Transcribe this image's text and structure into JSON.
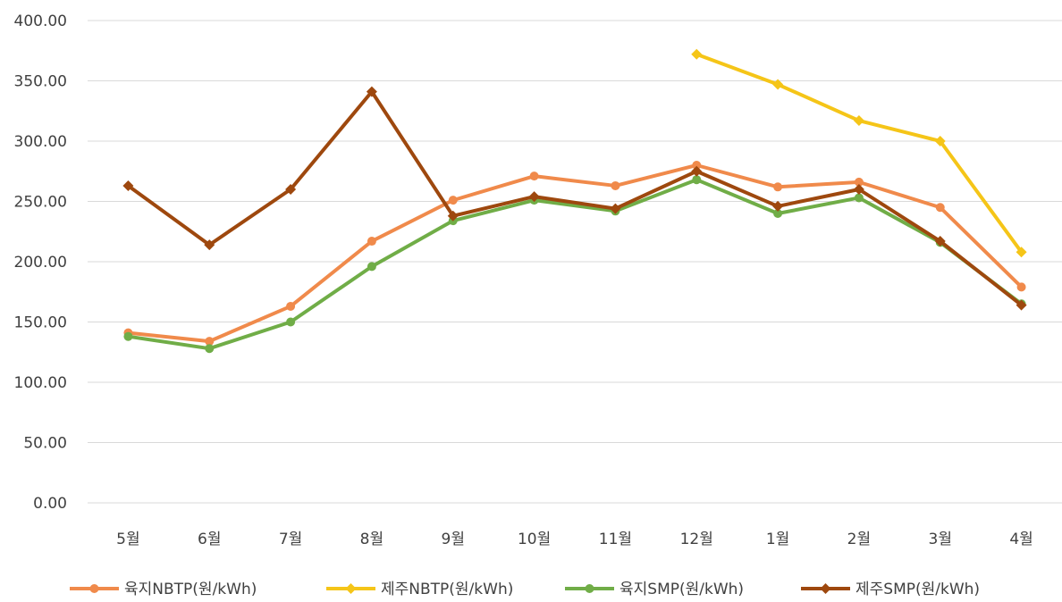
{
  "chart_data": {
    "type": "line",
    "title": "",
    "xlabel": "",
    "ylabel": "",
    "categories": [
      "5월",
      "6월",
      "7월",
      "8월",
      "9월",
      "10월",
      "11월",
      "12월",
      "1월",
      "2월",
      "3월",
      "4월"
    ],
    "ylim": [
      0,
      400
    ],
    "ytick_labels": [
      "0.00",
      "50.00",
      "100.00",
      "150.00",
      "200.00",
      "250.00",
      "300.00",
      "350.00",
      "400.00"
    ],
    "grid": true,
    "legend_position": "bottom",
    "series": [
      {
        "name": "육지NBTP(원/kWh)",
        "color": "#f08a4b",
        "marker": "circle",
        "values": [
          141,
          134,
          163,
          217,
          251,
          271,
          263,
          280,
          262,
          266,
          245,
          179
        ]
      },
      {
        "name": "제주NBTP(원/kWh)",
        "color": "#f5c518",
        "marker": "diamond",
        "values": [
          null,
          null,
          null,
          null,
          null,
          null,
          null,
          372,
          347,
          317,
          300,
          208
        ]
      },
      {
        "name": "육지SMP(원/kWh)",
        "color": "#70ad47",
        "marker": "circle",
        "values": [
          138,
          128,
          150,
          196,
          234,
          251,
          242,
          268,
          240,
          253,
          216,
          165
        ]
      },
      {
        "name": "제주SMP(원/kWh)",
        "color": "#9e480e",
        "marker": "diamond",
        "values": [
          263,
          214,
          260,
          341,
          238,
          254,
          244,
          275,
          246,
          260,
          217,
          164
        ]
      }
    ]
  }
}
